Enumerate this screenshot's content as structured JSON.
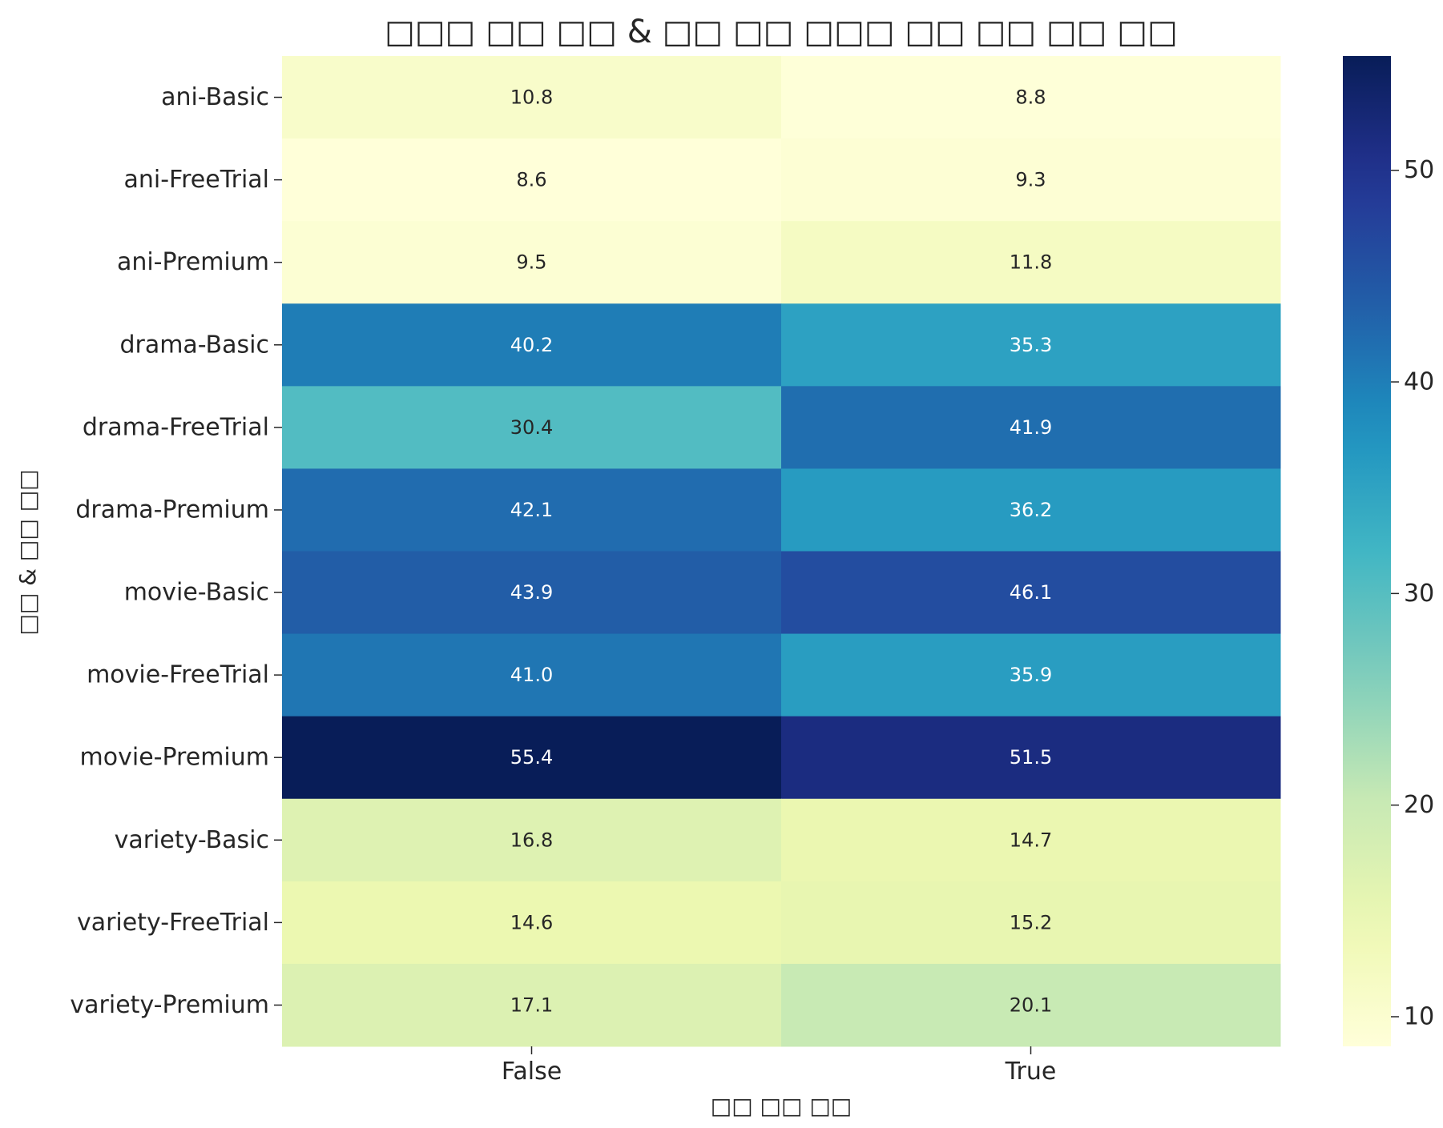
{
  "chart_data": {
    "type": "heatmap",
    "title": "□□□ □□ □□ & □□ □□ □□□ □□ □□ □□ □□",
    "xlabel": "□□ □□ □□",
    "ylabel": "□□ & □□ □□",
    "columns": [
      "False",
      "True"
    ],
    "rows": [
      "ani-Basic",
      "ani-FreeTrial",
      "ani-Premium",
      "drama-Basic",
      "drama-FreeTrial",
      "drama-Premium",
      "movie-Basic",
      "movie-FreeTrial",
      "movie-Premium",
      "variety-Basic",
      "variety-FreeTrial",
      "variety-Premium"
    ],
    "values": [
      [
        10.8,
        8.8
      ],
      [
        8.6,
        9.3
      ],
      [
        9.5,
        11.8
      ],
      [
        40.2,
        35.3
      ],
      [
        30.4,
        41.9
      ],
      [
        42.1,
        36.2
      ],
      [
        43.9,
        46.1
      ],
      [
        41.0,
        35.9
      ],
      [
        55.4,
        51.5
      ],
      [
        16.8,
        14.7
      ],
      [
        14.6,
        15.2
      ],
      [
        17.1,
        20.1
      ]
    ],
    "value_format": "0.0",
    "colorbar": {
      "colormap": "YlGnBu",
      "range": [
        8.6,
        55.4
      ],
      "ticks": [
        10,
        20,
        30,
        40,
        50
      ]
    }
  }
}
